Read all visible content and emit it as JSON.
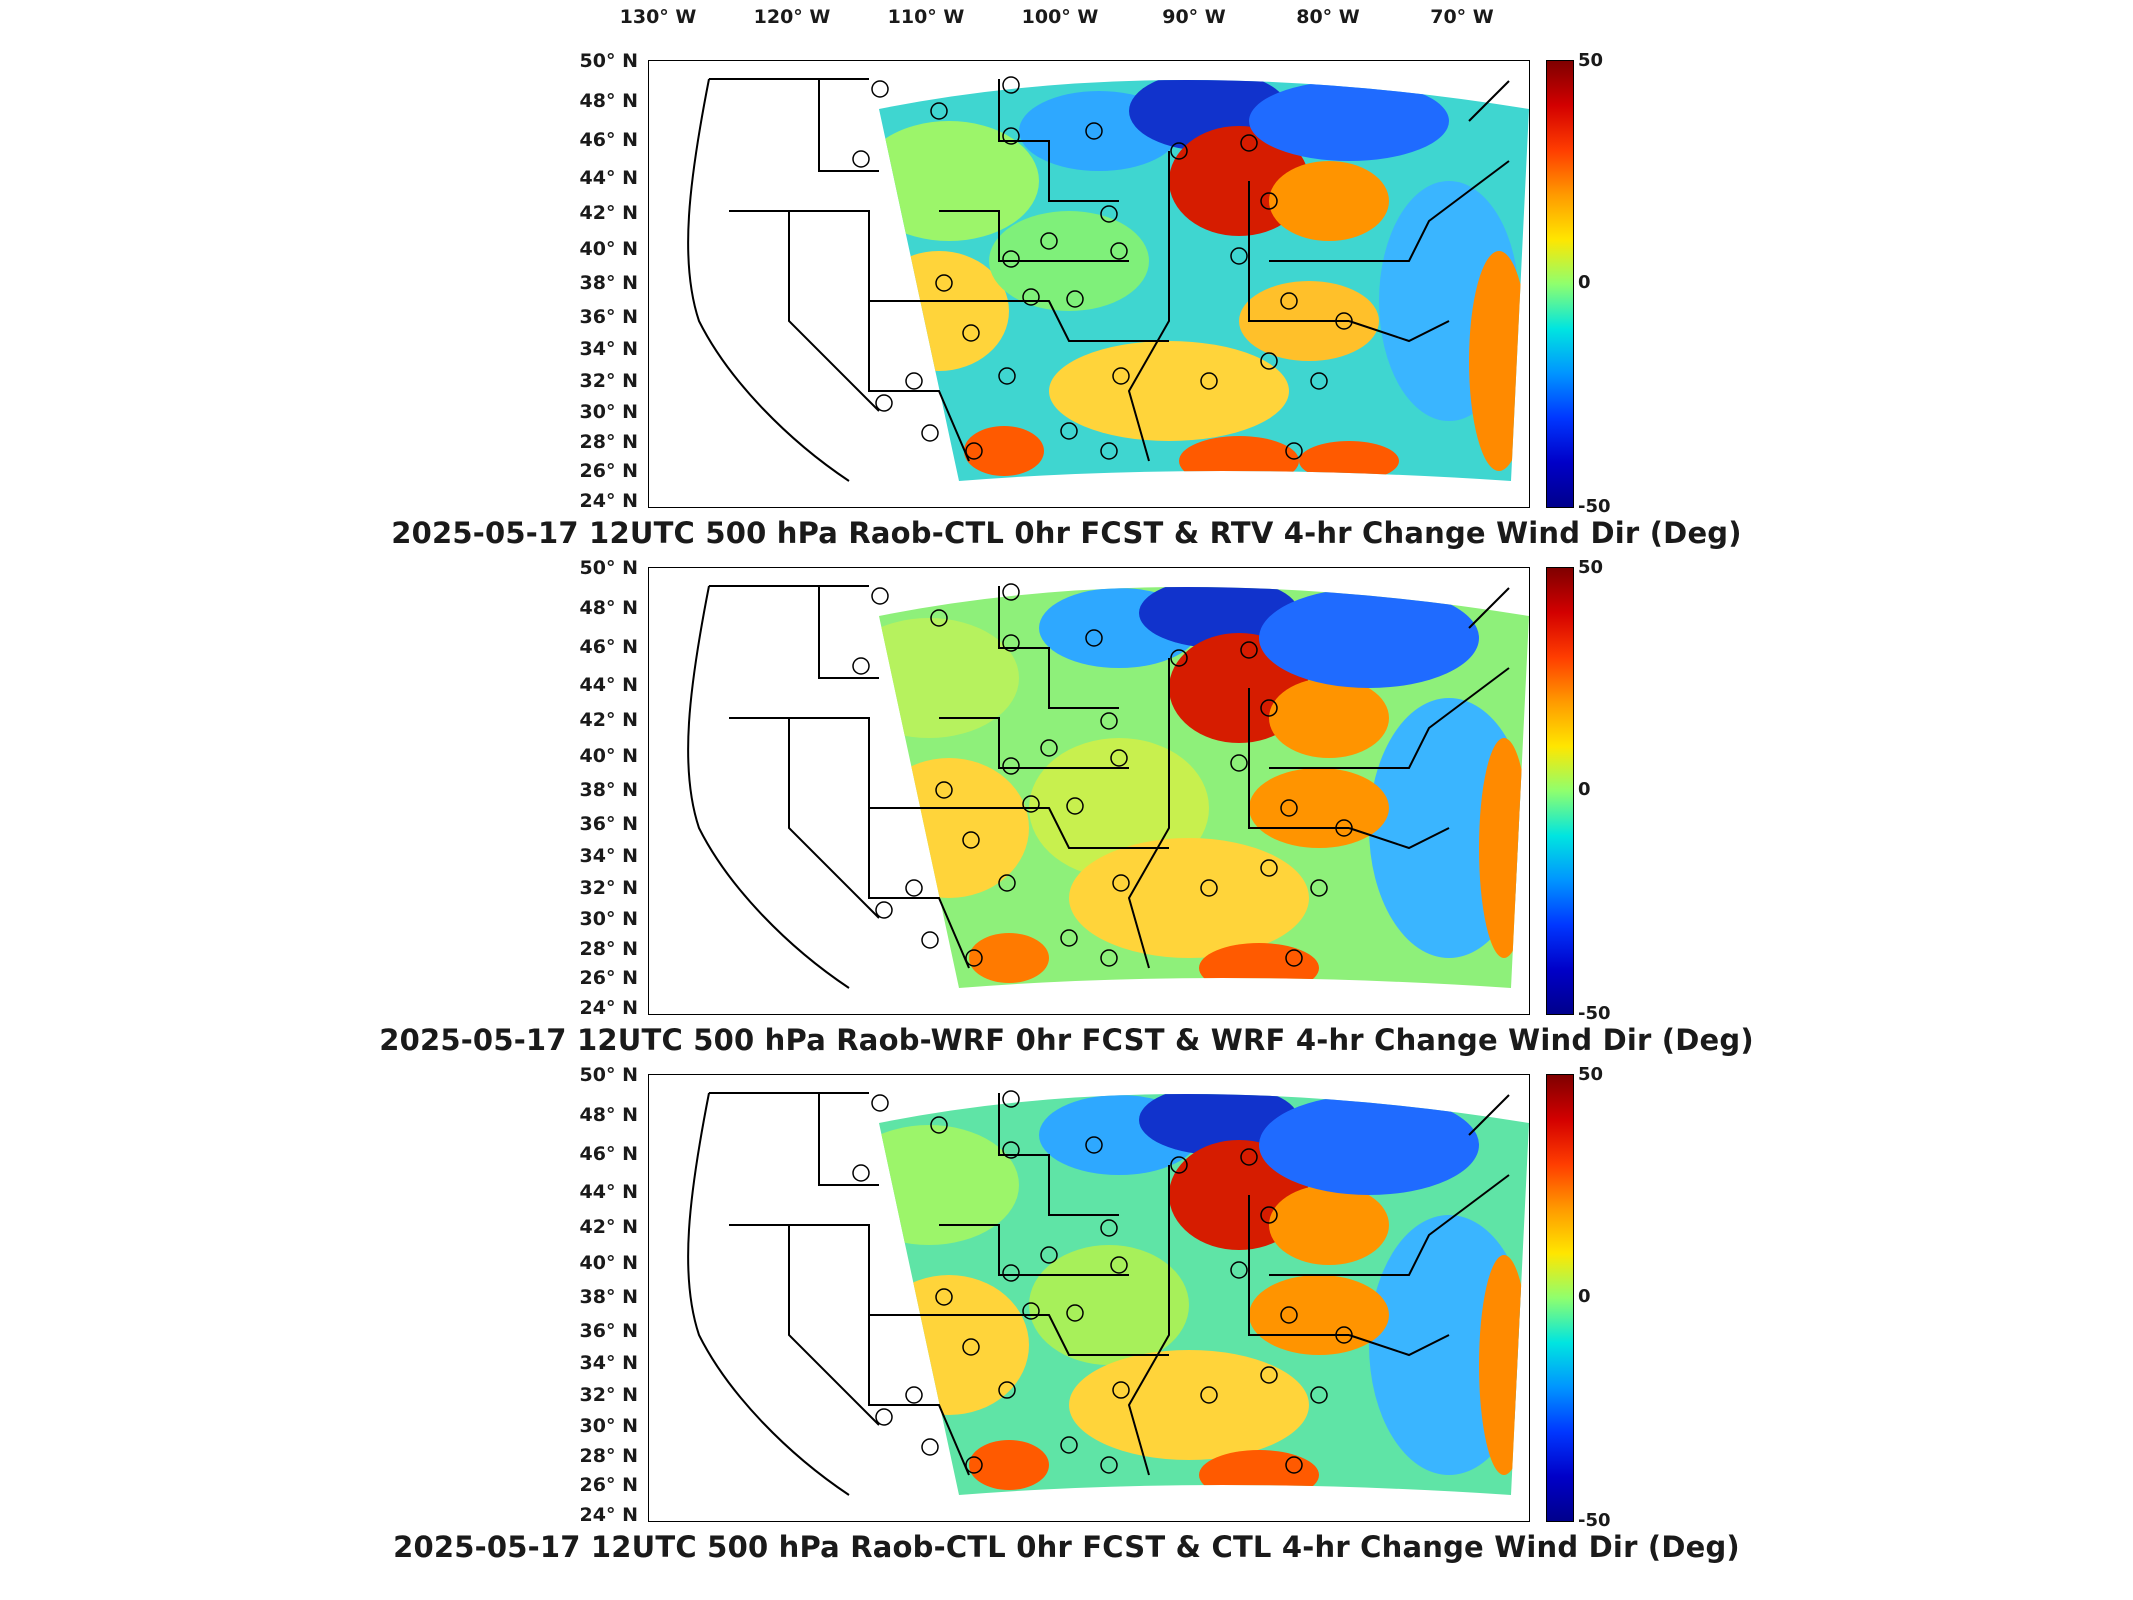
{
  "figure": {
    "lon_labels": [
      "130° W",
      "120° W",
      "110° W",
      "100° W",
      "90° W",
      "80° W",
      "70° W"
    ],
    "lat_labels": [
      "50° N",
      "48° N",
      "46° N",
      "44° N",
      "42° N",
      "40° N",
      "38° N",
      "36° N",
      "34° N",
      "32° N",
      "30° N",
      "28° N",
      "26° N",
      "24° N"
    ],
    "colorbar": {
      "max_label": "50",
      "mid_label": "0",
      "min_label": "-50",
      "colors": [
        "#7f0000",
        "#d30000",
        "#ff3d00",
        "#ff9a00",
        "#ffe600",
        "#8fff6e",
        "#00e5e0",
        "#0095ff",
        "#0037ff",
        "#0000c8",
        "#00008c"
      ]
    },
    "panels": [
      {
        "title": "2025-05-17 12UTC 500 hPa Raob-CTL 0hr FCST & RTV 4-hr Change Wind Dir (Deg)"
      },
      {
        "title": "2025-05-17 12UTC 500 hPa Raob-WRF 0hr FCST & WRF 4-hr Change Wind Dir (Deg)"
      },
      {
        "title": "2025-05-17 12UTC 500 hPa Raob-CTL 0hr FCST & CTL 4-hr Change Wind Dir (Deg)"
      }
    ]
  }
}
